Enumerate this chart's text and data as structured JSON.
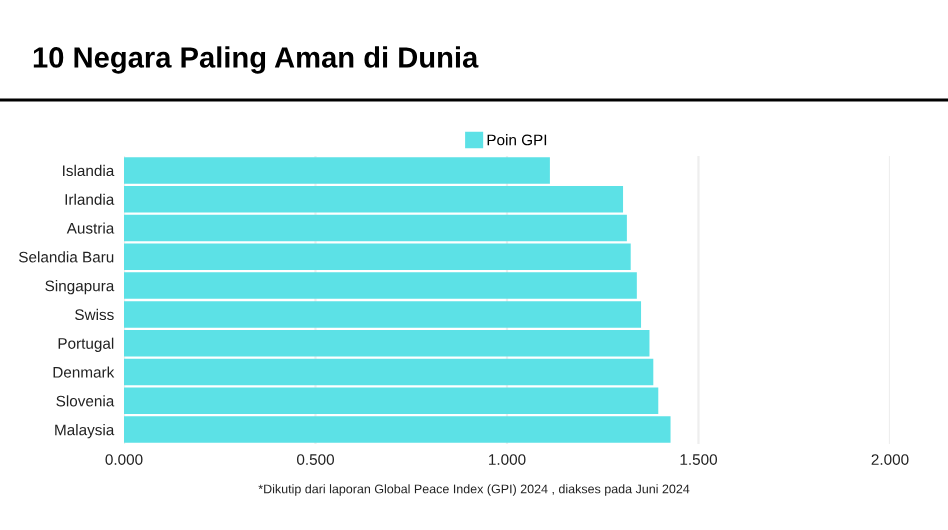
{
  "chart_data": {
    "type": "bar",
    "orientation": "horizontal",
    "title": "10 Negara Paling Aman di Dunia",
    "categories": [
      "Islandia",
      "Irlandia",
      "Austria",
      "Selandia Baru",
      "Singapura",
      "Swiss",
      "Portugal",
      "Denmark",
      "Slovenia",
      "Malaysia"
    ],
    "series": [
      {
        "name": "Poin GPI",
        "color": "#5ce1e6",
        "values": [
          1.112,
          1.303,
          1.313,
          1.323,
          1.339,
          1.35,
          1.372,
          1.382,
          1.395,
          1.427
        ]
      }
    ],
    "xlim": [
      0,
      2
    ],
    "xticks": [
      {
        "value": 0,
        "label": "0.000"
      },
      {
        "value": 0.5,
        "label": "0.500"
      },
      {
        "value": 1,
        "label": "1.000"
      },
      {
        "value": 1.5,
        "label": "1.500"
      },
      {
        "value": 2,
        "label": "2.000"
      }
    ],
    "grid": "x",
    "legend": "top",
    "annotations": [
      "*Dikutip dari laporan Global Peace Index (GPI) 2024 , diakses pada Juni 2024"
    ]
  }
}
